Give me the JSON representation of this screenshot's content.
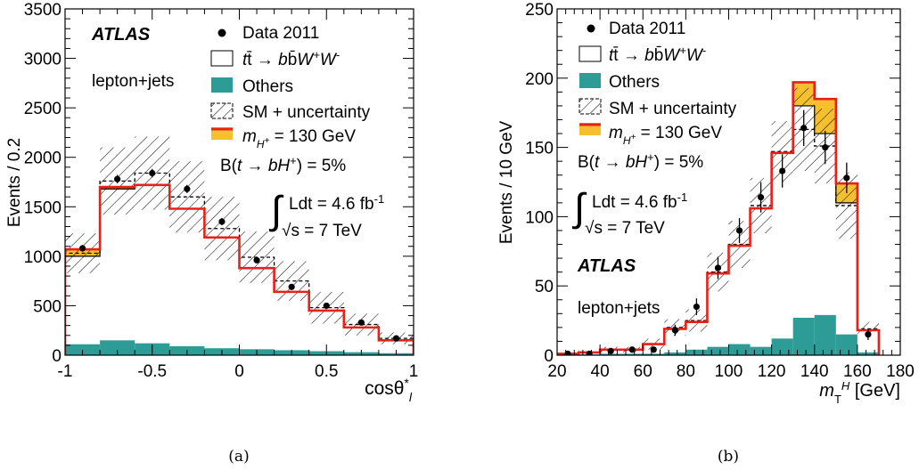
{
  "colors": {
    "ttbar_fill": "#ffffff",
    "others_fill": "#2e9c96",
    "signal_fill": "#f5c030",
    "signal_line": "#e8201a",
    "data_marker": "#000000",
    "sm_dashed": "#000000"
  },
  "chart_data": [
    {
      "type": "bar",
      "caption": "(a)",
      "xlabel": "cosθ*l",
      "ylabel": "Events / 0.2",
      "xlim": [
        -1,
        1
      ],
      "ylim": [
        0,
        3500
      ],
      "xticks": [
        "-1",
        "-0.5",
        "0",
        "0.5",
        "1"
      ],
      "yticks": [
        "0",
        "500",
        "1000",
        "1500",
        "2000",
        "2500",
        "3000",
        "3500"
      ],
      "xtick_values": [
        -1,
        -0.5,
        0,
        0.5,
        1
      ],
      "ytick_values": [
        0,
        500,
        1000,
        1500,
        2000,
        2500,
        3000,
        3500
      ],
      "bin_edges": [
        -1.0,
        -0.8,
        -0.6,
        -0.4,
        -0.2,
        0.0,
        0.2,
        0.4,
        0.6,
        0.8,
        1.0
      ],
      "series": [
        {
          "name": "Data 2011",
          "kind": "points",
          "values": [
            1080,
            1780,
            1840,
            1680,
            1350,
            960,
            690,
            500,
            330,
            170
          ],
          "errors": [
            33,
            42,
            43,
            41,
            37,
            31,
            26,
            22,
            18,
            13
          ]
        },
        {
          "name": "tt̄ → bb̄W+W-",
          "kind": "histogram",
          "values": [
            1000,
            1680,
            1720,
            1480,
            1190,
            880,
            640,
            450,
            280,
            150
          ]
        },
        {
          "name": "Others",
          "kind": "histogram",
          "values": [
            110,
            150,
            120,
            90,
            70,
            60,
            50,
            40,
            30,
            20
          ]
        },
        {
          "name": "SM + uncertainty",
          "kind": "band",
          "values": [
            1030,
            1760,
            1840,
            1600,
            1280,
            990,
            750,
            480,
            310,
            170
          ],
          "uncertainty": [
            200,
            340,
            370,
            360,
            320,
            260,
            200,
            160,
            110,
            60
          ]
        },
        {
          "name": "mH+ = 130 GeV",
          "kind": "line",
          "values": [
            1070,
            1700,
            1720,
            1480,
            1190,
            880,
            640,
            450,
            280,
            150
          ]
        }
      ],
      "annotations": {
        "experiment": "ATLAS",
        "channel": "lepton+jets"
      },
      "legend_position": "top-right"
    },
    {
      "type": "bar",
      "caption": "(b)",
      "xlabel": "mTH [GeV]",
      "ylabel": "Events / 10 GeV",
      "xlim": [
        20,
        180
      ],
      "ylim": [
        0,
        250
      ],
      "xticks": [
        "20",
        "40",
        "60",
        "80",
        "100",
        "120",
        "140",
        "160",
        "180"
      ],
      "yticks": [
        "0",
        "50",
        "100",
        "150",
        "200",
        "250"
      ],
      "xtick_values": [
        20,
        40,
        60,
        80,
        100,
        120,
        140,
        160,
        180
      ],
      "ytick_values": [
        0,
        50,
        100,
        150,
        200,
        250
      ],
      "bin_edges": [
        20,
        30,
        40,
        50,
        60,
        70,
        80,
        90,
        100,
        110,
        120,
        130,
        140,
        150,
        160,
        170
      ],
      "series": [
        {
          "name": "Data 2011",
          "kind": "points",
          "values": [
            1,
            1,
            3,
            4,
            4,
            18,
            35,
            63,
            90,
            114,
            133,
            164,
            150,
            128,
            15
          ],
          "errors": [
            1,
            1,
            2,
            2,
            2,
            4,
            6,
            8,
            9,
            11,
            12,
            13,
            12,
            11,
            4
          ]
        },
        {
          "name": "tt̄ → bb̄W+W-",
          "kind": "histogram",
          "values": [
            1,
            2,
            4,
            4,
            8,
            19,
            24,
            59,
            79,
            106,
            146,
            180,
            160,
            110,
            18
          ]
        },
        {
          "name": "Others",
          "kind": "histogram",
          "values": [
            0.5,
            0.5,
            1,
            1,
            1,
            2,
            4,
            6,
            8,
            6,
            12,
            27,
            29,
            15,
            2
          ]
        },
        {
          "name": "SM + uncertainty",
          "kind": "band",
          "values": [
            1,
            2,
            4,
            4,
            8,
            20,
            25,
            60,
            80,
            108,
            147,
            163,
            151,
            108,
            19
          ],
          "uncertainty": [
            1,
            1,
            2,
            2,
            4,
            6,
            8,
            14,
            17,
            20,
            22,
            30,
            27,
            24,
            5
          ]
        },
        {
          "name": "mH+ = 130 GeV",
          "kind": "line",
          "values": [
            1,
            2,
            4,
            4,
            8,
            19,
            24,
            59,
            79,
            106,
            146,
            197,
            185,
            124,
            18
          ]
        }
      ],
      "annotations": {
        "experiment": "ATLAS",
        "channel": "lepton+jets"
      },
      "legend_position": "top-left"
    }
  ],
  "legend": {
    "data": "Data 2011",
    "others": "Others",
    "sm_unc": "SM + uncertainty",
    "signal_value": " = 130 GeV",
    "br_value": " = 5%",
    "lumi": "Ldt = 4.6 fb",
    "lumi_exp": "-1",
    "sqrt_s": "s = 7 TeV"
  },
  "labels": {
    "atlas": "ATLAS",
    "channel": "lepton+jets",
    "ylabel_a": "Events / 0.2",
    "ylabel_b": "Events / 10 GeV",
    "unit_b": " [GeV]",
    "caption_a": "(a)",
    "caption_b": "(b)"
  }
}
